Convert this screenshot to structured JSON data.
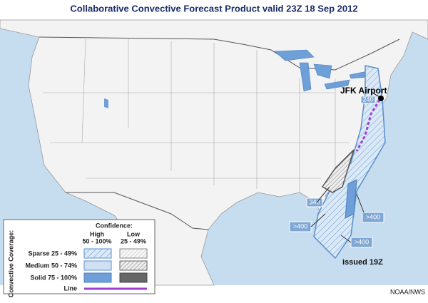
{
  "title": "Collaborative Convective Forecast Product valid 23Z 18 Sep 2012",
  "annotations": {
    "airport": "JFK Airport",
    "issued": "issued 19Z",
    "credit": "NOAA/NWS"
  },
  "tops_labels": [
    "240",
    "340",
    ">400",
    ">400",
    ">400"
  ],
  "legend": {
    "confidence": "Confidence:",
    "high": "High",
    "high_range": "50 - 100%",
    "low": "Low",
    "low_range": "25 - 49%",
    "coverage_title": "Convective Coverage:",
    "rows": [
      "Sparse 25 - 49%",
      "Medium 50 - 74%",
      "Solid 75 - 100%",
      "Line"
    ]
  }
}
